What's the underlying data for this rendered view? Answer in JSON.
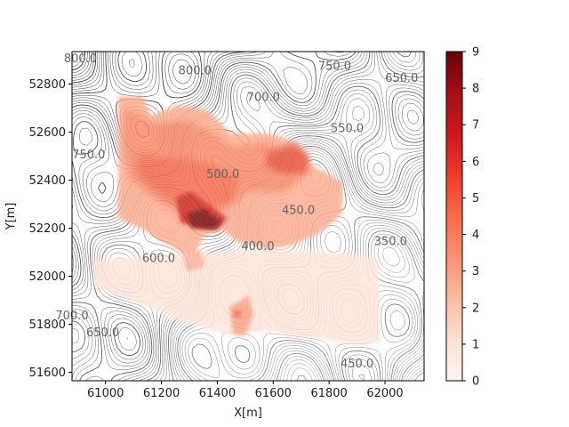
{
  "chart_data": {
    "type": "heatmap",
    "title": "",
    "xlabel": "X[m]",
    "ylabel": "Y[m]",
    "xlim": [
      60880,
      62140
    ],
    "ylim": [
      51565,
      52935
    ],
    "x_ticks": [
      "61000",
      "61200",
      "61400",
      "61600",
      "61800",
      "62000"
    ],
    "y_ticks": [
      "51600",
      "51800",
      "52000",
      "52200",
      "52400",
      "52600",
      "52800"
    ],
    "colorbar": {
      "cmap": "Reds",
      "range": [
        0,
        9
      ],
      "ticks": [
        "0",
        "1",
        "2",
        "3",
        "4",
        "5",
        "6",
        "7",
        "8",
        "9"
      ],
      "colors": [
        "#fff5f0",
        "#fee0d2",
        "#fcbba1",
        "#fc9272",
        "#fb6a4a",
        "#ef3b2c",
        "#cb181d",
        "#a50f15",
        "#67000d"
      ]
    },
    "contour_labels": [
      {
        "text": "800.0",
        "x": 60910,
        "y": 52890
      },
      {
        "text": "800.0",
        "x": 61320,
        "y": 52840
      },
      {
        "text": "750.0",
        "x": 61820,
        "y": 52860
      },
      {
        "text": "650.0",
        "x": 62060,
        "y": 52810
      },
      {
        "text": "700.0",
        "x": 61565,
        "y": 52730
      },
      {
        "text": "550.0",
        "x": 61865,
        "y": 52600
      },
      {
        "text": "750.0",
        "x": 60940,
        "y": 52490
      },
      {
        "text": "500.0",
        "x": 61420,
        "y": 52410
      },
      {
        "text": "450.0",
        "x": 61690,
        "y": 52260
      },
      {
        "text": "350.0",
        "x": 62020,
        "y": 52130
      },
      {
        "text": "400.0",
        "x": 61545,
        "y": 52110
      },
      {
        "text": "600.0",
        "x": 61190,
        "y": 52060
      },
      {
        "text": "700.0",
        "x": 60880,
        "y": 51820
      },
      {
        "text": "650.0",
        "x": 60990,
        "y": 51750
      },
      {
        "text": "450.0",
        "x": 61900,
        "y": 51620
      }
    ],
    "grid": false,
    "legend": "colorbar-right"
  }
}
